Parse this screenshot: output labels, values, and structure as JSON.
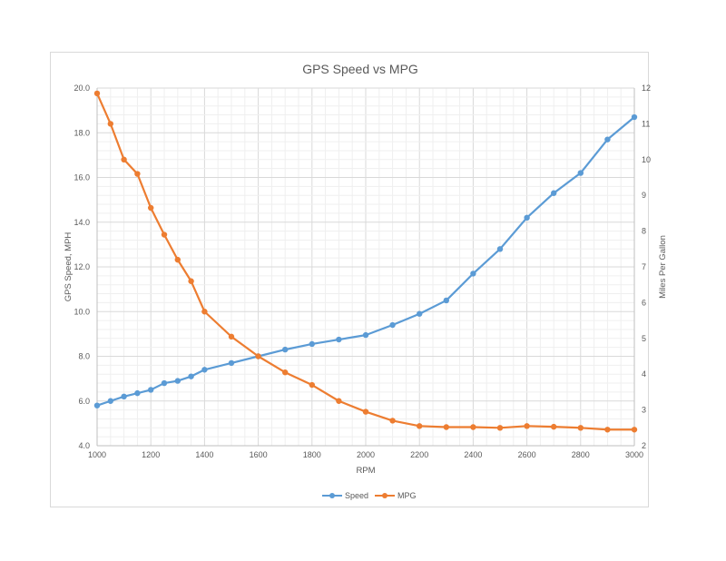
{
  "chart_data": {
    "type": "line",
    "title": "GPS Speed vs MPG",
    "xlabel": "RPM",
    "ylabel": "GPS Speed, MPH",
    "y2label": "Miles Per Gallon",
    "xlim": [
      1000,
      3000
    ],
    "ylim": [
      4.0,
      20.0
    ],
    "y2lim": [
      2,
      12
    ],
    "x_ticks": [
      1000,
      1200,
      1400,
      1600,
      1800,
      2000,
      2200,
      2400,
      2600,
      2800,
      3000
    ],
    "y_ticks": [
      "4.0",
      "6.0",
      "8.0",
      "10.0",
      "12.0",
      "14.0",
      "16.0",
      "18.0",
      "20.0"
    ],
    "y2_ticks": [
      "2",
      "3",
      "4",
      "5",
      "6",
      "7",
      "8",
      "9",
      "10",
      "11",
      "12"
    ],
    "grid": true,
    "legend": "bottom",
    "series": [
      {
        "name": "Speed",
        "axis": "left",
        "color": "#5b9bd5",
        "x": [
          1000,
          1050,
          1100,
          1150,
          1200,
          1250,
          1300,
          1350,
          1400,
          1500,
          1600,
          1700,
          1800,
          1900,
          2000,
          2100,
          2200,
          2300,
          2400,
          2500,
          2600,
          2700,
          2800,
          2900,
          3000
        ],
        "values": [
          5.8,
          6.0,
          6.2,
          6.35,
          6.5,
          6.8,
          6.9,
          7.1,
          7.4,
          7.7,
          8.0,
          8.3,
          8.55,
          8.75,
          8.95,
          9.4,
          9.9,
          10.5,
          11.7,
          12.8,
          14.2,
          15.3,
          16.2,
          17.7,
          18.7
        ]
      },
      {
        "name": "MPG",
        "axis": "right",
        "color": "#ed7d31",
        "x": [
          1000,
          1050,
          1100,
          1150,
          1200,
          1250,
          1300,
          1350,
          1400,
          1500,
          1600,
          1700,
          1800,
          1900,
          2000,
          2100,
          2200,
          2300,
          2400,
          2500,
          2600,
          2700,
          2800,
          2900,
          3000
        ],
        "values": [
          11.85,
          11.0,
          10.0,
          9.6,
          8.65,
          7.9,
          7.2,
          6.6,
          5.75,
          5.05,
          4.5,
          4.05,
          3.7,
          3.25,
          2.95,
          2.7,
          2.55,
          2.52,
          2.52,
          2.5,
          2.55,
          2.53,
          2.5,
          2.45,
          2.45
        ]
      }
    ]
  }
}
